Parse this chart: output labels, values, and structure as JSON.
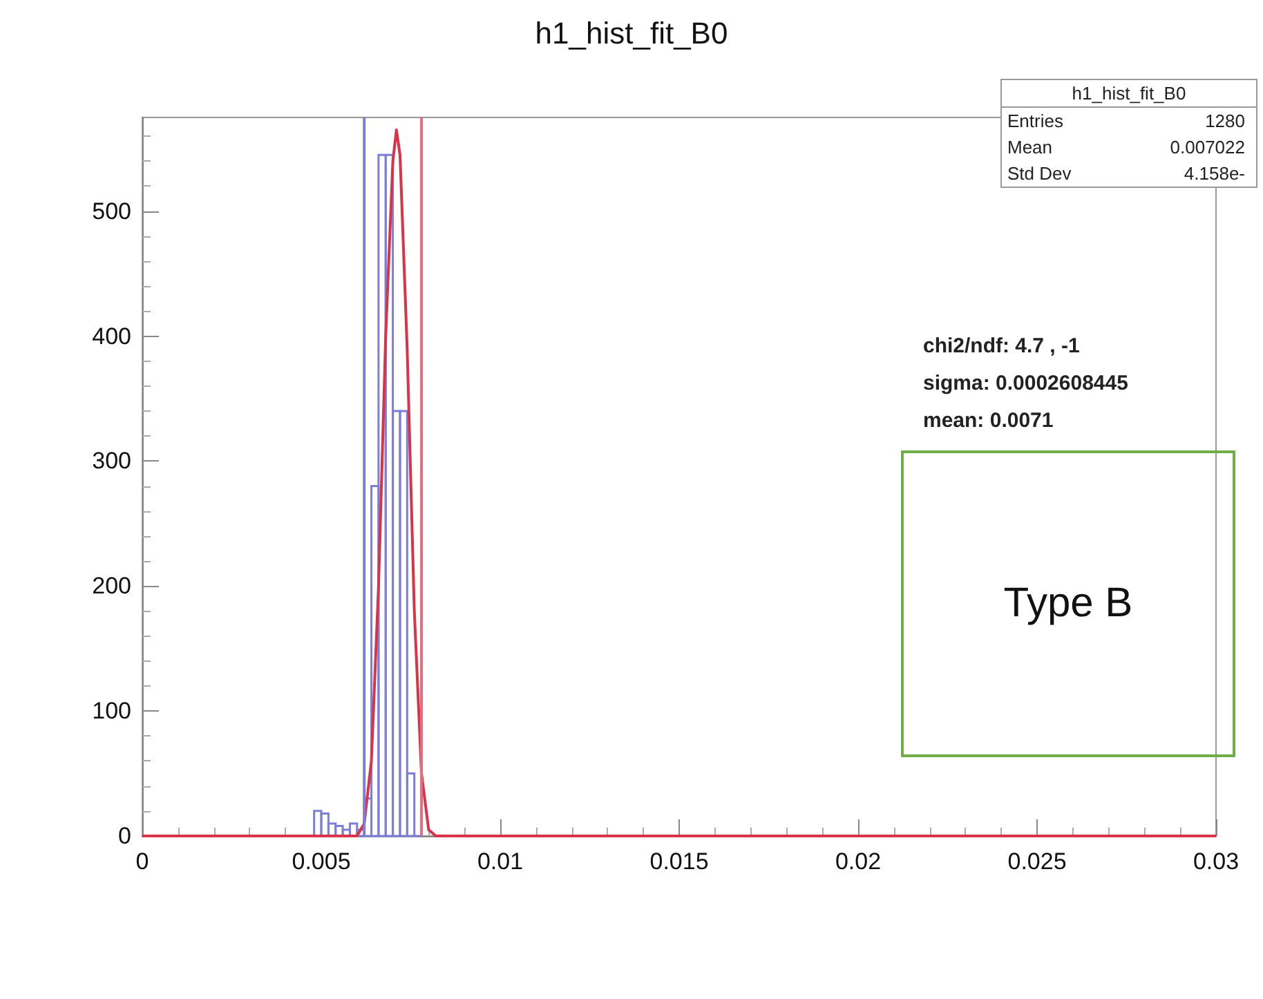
{
  "chart_data": {
    "type": "histogram",
    "title": "h1_hist_fit_B0",
    "series": [
      {
        "color": "#7b7fd8",
        "bins": [
          0.0046,
          0.0048,
          0.005,
          0.0052,
          0.0054,
          0.0056,
          0.0058,
          0.006,
          0.0062,
          0.0064,
          0.0066,
          0.0068,
          0.007,
          0.0072,
          0.0074,
          0.0076,
          0.0078
        ],
        "values": [
          0,
          20,
          18,
          10,
          8,
          5,
          10,
          5,
          30,
          280,
          545,
          545,
          340,
          340,
          50,
          0
        ]
      },
      {
        "type": "line",
        "color": "#d9334a",
        "x": [
          0,
          0.006,
          0.0062,
          0.0064,
          0.0066,
          0.0068,
          0.007,
          0.0071,
          0.0072,
          0.0074,
          0.0076,
          0.0078,
          0.008,
          0.0082,
          0.03
        ],
        "values": [
          0,
          0,
          10,
          60,
          200,
          400,
          540,
          565,
          545,
          390,
          180,
          50,
          5,
          0,
          0
        ]
      }
    ],
    "ref_lines": [
      {
        "axis": "x",
        "value": 0.0062,
        "color": "#7b7fd8"
      },
      {
        "axis": "x",
        "value": 0.0078,
        "color": "#e0707f"
      }
    ],
    "xlim": [
      0,
      0.03
    ],
    "xticks": [
      0,
      0.005,
      0.01,
      0.015,
      0.02,
      0.025,
      0.03
    ],
    "ylim": [
      0,
      575
    ],
    "yticks": [
      0,
      100,
      200,
      300,
      400,
      500
    ],
    "annotations": [
      "h1_hist_fit_B0",
      "Entries",
      "1280",
      "Mean",
      "0.007022",
      "Std Dev",
      "4.158e-",
      "chi2/ndf: 4.7 , -1",
      "sigma: 0.0002608445",
      "mean: 0.0071",
      "Type B"
    ]
  }
}
